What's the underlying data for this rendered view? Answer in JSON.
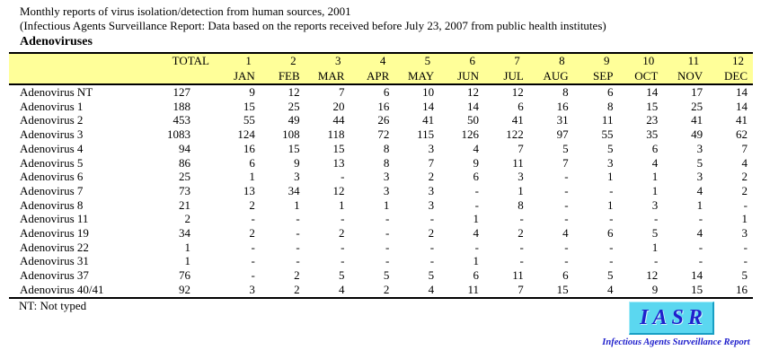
{
  "page": {
    "title_line1": "Monthly reports of virus isolation/detection from human sources, 2001",
    "title_line2": "(Infectious Agents Surveillance Report: Data based on the reports received before July 23, 2007 from public health institutes)",
    "section_title": "Adenoviruses"
  },
  "table": {
    "total_header": "TOTAL",
    "month_numbers": [
      "1",
      "2",
      "3",
      "4",
      "5",
      "6",
      "7",
      "8",
      "9",
      "10",
      "11",
      "12"
    ],
    "month_names": [
      "JAN",
      "FEB",
      "MAR",
      "APR",
      "MAY",
      "JUN",
      "JUL",
      "AUG",
      "SEP",
      "OCT",
      "NOV",
      "DEC"
    ],
    "rows": [
      {
        "label": "Adenovirus NT",
        "total": "127",
        "months": [
          "9",
          "12",
          "7",
          "6",
          "10",
          "12",
          "12",
          "8",
          "6",
          "14",
          "17",
          "14"
        ]
      },
      {
        "label": "Adenovirus 1",
        "total": "188",
        "months": [
          "15",
          "25",
          "20",
          "16",
          "14",
          "14",
          "6",
          "16",
          "8",
          "15",
          "25",
          "14"
        ]
      },
      {
        "label": "Adenovirus 2",
        "total": "453",
        "months": [
          "55",
          "49",
          "44",
          "26",
          "41",
          "50",
          "41",
          "31",
          "11",
          "23",
          "41",
          "41"
        ]
      },
      {
        "label": "Adenovirus 3",
        "total": "1083",
        "months": [
          "124",
          "108",
          "118",
          "72",
          "115",
          "126",
          "122",
          "97",
          "55",
          "35",
          "49",
          "62"
        ]
      },
      {
        "label": "Adenovirus 4",
        "total": "94",
        "months": [
          "16",
          "15",
          "15",
          "8",
          "3",
          "4",
          "7",
          "5",
          "5",
          "6",
          "3",
          "7"
        ]
      },
      {
        "label": "Adenovirus 5",
        "total": "86",
        "months": [
          "6",
          "9",
          "13",
          "8",
          "7",
          "9",
          "11",
          "7",
          "3",
          "4",
          "5",
          "4"
        ]
      },
      {
        "label": "Adenovirus 6",
        "total": "25",
        "months": [
          "1",
          "3",
          "-",
          "3",
          "2",
          "6",
          "3",
          "-",
          "1",
          "1",
          "3",
          "2"
        ]
      },
      {
        "label": "Adenovirus 7",
        "total": "73",
        "months": [
          "13",
          "34",
          "12",
          "3",
          "3",
          "-",
          "1",
          "-",
          "-",
          "1",
          "4",
          "2"
        ]
      },
      {
        "label": "Adenovirus 8",
        "total": "21",
        "months": [
          "2",
          "1",
          "1",
          "1",
          "3",
          "-",
          "8",
          "-",
          "1",
          "3",
          "1",
          "-"
        ]
      },
      {
        "label": "Adenovirus 11",
        "total": "2",
        "months": [
          "-",
          "-",
          "-",
          "-",
          "-",
          "1",
          "-",
          "-",
          "-",
          "-",
          "-",
          "1"
        ]
      },
      {
        "label": "Adenovirus 19",
        "total": "34",
        "months": [
          "2",
          "-",
          "2",
          "-",
          "2",
          "4",
          "2",
          "4",
          "6",
          "5",
          "4",
          "3"
        ]
      },
      {
        "label": "Adenovirus 22",
        "total": "1",
        "months": [
          "-",
          "-",
          "-",
          "-",
          "-",
          "-",
          "-",
          "-",
          "-",
          "1",
          "-",
          "-"
        ]
      },
      {
        "label": "Adenovirus 31",
        "total": "1",
        "months": [
          "-",
          "-",
          "-",
          "-",
          "-",
          "1",
          "-",
          "-",
          "-",
          "-",
          "-",
          "-"
        ]
      },
      {
        "label": "Adenovirus 37",
        "total": "76",
        "months": [
          "-",
          "2",
          "5",
          "5",
          "5",
          "6",
          "11",
          "6",
          "5",
          "12",
          "14",
          "5"
        ]
      },
      {
        "label": "Adenovirus 40/41",
        "total": "92",
        "months": [
          "3",
          "2",
          "4",
          "2",
          "4",
          "11",
          "7",
          "15",
          "4",
          "9",
          "15",
          "16"
        ]
      }
    ]
  },
  "footnote": "NT: Not typed",
  "logo": {
    "acronym": "IASR",
    "caption": "Infectious Agents Surveillance Report"
  },
  "colors": {
    "header_bg": "#FFFF99",
    "logo_bg": "#5BD7F0",
    "logo_text_blue": "#2020CC"
  }
}
